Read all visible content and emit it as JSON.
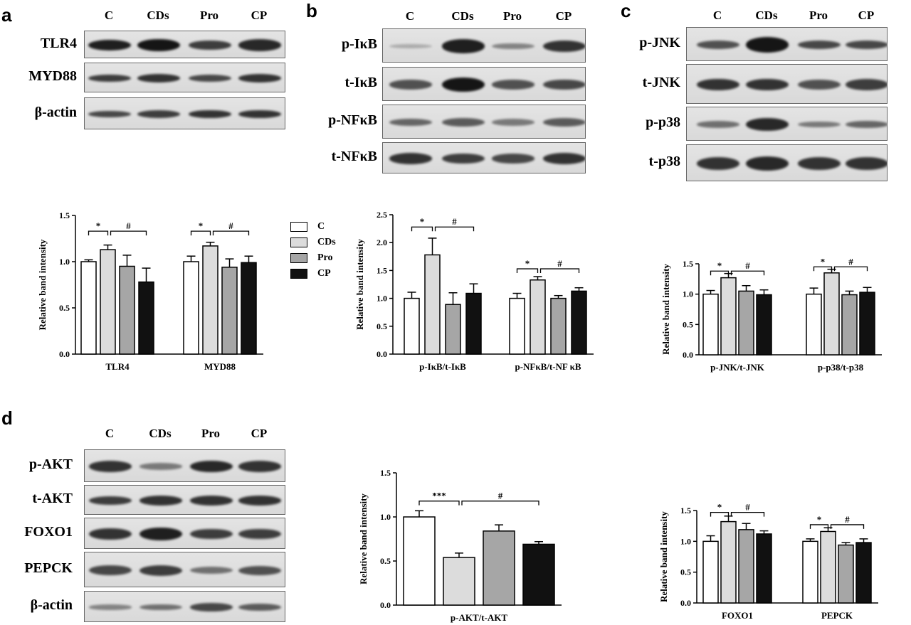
{
  "panel_labels": [
    "a",
    "b",
    "c",
    "d"
  ],
  "lanes": [
    "C",
    "CDs",
    "Pro",
    "CP"
  ],
  "group_colors": [
    "#ffffff",
    "#dcdcdc",
    "#a6a6a6",
    "#111111"
  ],
  "blots": {
    "a": [
      "TLR4",
      "MYD88",
      "β-actin"
    ],
    "b": [
      "p-IκB",
      "t-IκB",
      "p-NFκB",
      "t-NFκB"
    ],
    "c": [
      "p-JNK",
      "t-JNK",
      "p-p38",
      "t-p38"
    ],
    "d": [
      "p-AKT",
      "t-AKT",
      "FOXO1",
      "PEPCK",
      "β-actin"
    ]
  },
  "legend": [
    "C",
    "CDs",
    "Pro",
    "CP"
  ],
  "chart_data": [
    {
      "panel": "a",
      "type": "bar",
      "ylabel": "Relative band intensity",
      "yticks": [
        "0.0",
        "0.5",
        "1.0",
        "1.5"
      ],
      "ylim": [
        0,
        1.5
      ],
      "categories": [
        "TLR4",
        "MYD88"
      ],
      "values": [
        [
          1.0,
          1.13,
          0.95,
          0.78
        ],
        [
          1.0,
          1.17,
          0.94,
          0.99
        ]
      ],
      "errors": [
        [
          0.02,
          0.05,
          0.12,
          0.15
        ],
        [
          0.06,
          0.04,
          0.09,
          0.07
        ]
      ],
      "annotations": [
        {
          "group": 0,
          "from": 0,
          "to": 1,
          "text": "*",
          "y": 1.33
        },
        {
          "group": 0,
          "from": 1,
          "to": 3,
          "text": "#",
          "y": 1.33
        },
        {
          "group": 1,
          "from": 0,
          "to": 1,
          "text": "*",
          "y": 1.33
        },
        {
          "group": 1,
          "from": 1,
          "to": 3,
          "text": "#",
          "y": 1.33
        }
      ]
    },
    {
      "panel": "b",
      "type": "bar",
      "ylabel": "Relative band intensity",
      "yticks": [
        "0.0",
        "0.5",
        "1.0",
        "1.5",
        "2.0",
        "2.5"
      ],
      "ylim": [
        0,
        2.5
      ],
      "categories": [
        "p-IκB/t-IκB",
        "p-NFκB/t-NF κB"
      ],
      "values": [
        [
          1.0,
          1.78,
          0.89,
          1.09
        ],
        [
          1.0,
          1.33,
          1.0,
          1.13
        ]
      ],
      "errors": [
        [
          0.11,
          0.3,
          0.21,
          0.17
        ],
        [
          0.09,
          0.06,
          0.05,
          0.06
        ]
      ],
      "annotations": [
        {
          "group": 0,
          "from": 0,
          "to": 1,
          "text": "*",
          "y": 2.28
        },
        {
          "group": 0,
          "from": 1,
          "to": 3,
          "text": "#",
          "y": 2.28
        },
        {
          "group": 1,
          "from": 0,
          "to": 1,
          "text": "*",
          "y": 1.53
        },
        {
          "group": 1,
          "from": 1,
          "to": 3,
          "text": "#",
          "y": 1.53
        }
      ]
    },
    {
      "panel": "c",
      "type": "bar",
      "ylabel": "Relative band intensity",
      "yticks": [
        "0.0",
        "0.5",
        "1.0",
        "1.5"
      ],
      "ylim": [
        0,
        1.5
      ],
      "categories": [
        "p-JNK/t-JNK",
        "p-p38/t-p38"
      ],
      "values": [
        [
          1.0,
          1.27,
          1.05,
          0.99
        ],
        [
          1.0,
          1.35,
          0.99,
          1.03
        ]
      ],
      "errors": [
        [
          0.06,
          0.07,
          0.09,
          0.08
        ],
        [
          0.1,
          0.06,
          0.06,
          0.08
        ]
      ],
      "annotations": [
        {
          "group": 0,
          "from": 0,
          "to": 1,
          "text": "*",
          "y": 1.38
        },
        {
          "group": 0,
          "from": 1,
          "to": 3,
          "text": "#",
          "y": 1.38
        },
        {
          "group": 1,
          "from": 0,
          "to": 1,
          "text": "*",
          "y": 1.45
        },
        {
          "group": 1,
          "from": 1,
          "to": 3,
          "text": "#",
          "y": 1.45
        }
      ]
    },
    {
      "panel": "d1",
      "type": "bar",
      "ylabel": "Relative band intensity",
      "yticks": [
        "0.0",
        "0.5",
        "1.0",
        "1.5"
      ],
      "ylim": [
        0,
        1.5
      ],
      "categories": [
        "p-AKT/t-AKT"
      ],
      "values": [
        [
          1.0,
          0.54,
          0.84,
          0.69
        ]
      ],
      "errors": [
        [
          0.07,
          0.05,
          0.07,
          0.03
        ]
      ],
      "annotations": [
        {
          "group": 0,
          "from": 0,
          "to": 1,
          "text": "***",
          "y": 1.18
        },
        {
          "group": 0,
          "from": 1,
          "to": 3,
          "text": "#",
          "y": 1.18
        }
      ]
    },
    {
      "panel": "d2",
      "type": "bar",
      "ylabel": "Relative band intensity",
      "yticks": [
        "0.0",
        "0.5",
        "1.0",
        "1.5"
      ],
      "ylim": [
        0,
        1.5
      ],
      "categories": [
        "FOXO1",
        "PEPCK"
      ],
      "values": [
        [
          1.0,
          1.32,
          1.19,
          1.12
        ],
        [
          1.0,
          1.16,
          0.94,
          0.98
        ]
      ],
      "errors": [
        [
          0.09,
          0.09,
          0.1,
          0.05
        ],
        [
          0.04,
          0.06,
          0.04,
          0.06
        ]
      ],
      "annotations": [
        {
          "group": 0,
          "from": 0,
          "to": 1,
          "text": "*",
          "y": 1.47
        },
        {
          "group": 0,
          "from": 1,
          "to": 3,
          "text": "#",
          "y": 1.47
        },
        {
          "group": 1,
          "from": 0,
          "to": 1,
          "text": "*",
          "y": 1.27
        },
        {
          "group": 1,
          "from": 1,
          "to": 3,
          "text": "#",
          "y": 1.27
        }
      ]
    }
  ]
}
